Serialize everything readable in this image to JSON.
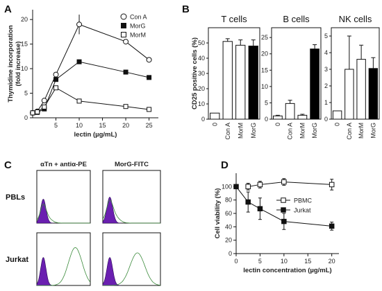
{
  "panels": {
    "a": "A",
    "b": "B",
    "c": "C",
    "d": "D"
  },
  "chart_data": [
    {
      "id": "A",
      "type": "line",
      "xlabel": "lectin (µg/mL)",
      "ylabel": "Thymidine incorporation\n(fold increase)",
      "xlim": [
        0,
        27
      ],
      "ylim": [
        0,
        22
      ],
      "xticks": [
        5,
        10,
        15,
        20,
        25
      ],
      "yticks": [
        0,
        5,
        10,
        15,
        20
      ],
      "legend_position": "top-right",
      "series": [
        {
          "name": "Con A",
          "marker": "circle-open",
          "x": [
            0,
            1,
            2.5,
            5,
            10,
            20,
            25
          ],
          "y": [
            1,
            1.3,
            3.5,
            8.8,
            19,
            15.5,
            11.8
          ],
          "error": [
            0,
            0,
            0,
            0,
            2,
            0,
            0
          ]
        },
        {
          "name": "MorG",
          "marker": "square-filled",
          "x": [
            0,
            1,
            2.5,
            5,
            10,
            20,
            25
          ],
          "y": [
            1,
            1.1,
            1.8,
            7.8,
            11.4,
            9.3,
            8.2
          ],
          "error": [
            0,
            0,
            0,
            0,
            0,
            0,
            0
          ]
        },
        {
          "name": "MorM",
          "marker": "square-open",
          "x": [
            0,
            1,
            2.5,
            5,
            10,
            20,
            25
          ],
          "y": [
            1,
            1.2,
            2.2,
            6.1,
            3.4,
            2.3,
            1.7
          ],
          "error": [
            0,
            0,
            0,
            0,
            0,
            0,
            0
          ]
        }
      ]
    },
    {
      "id": "B",
      "type": "bar",
      "ylabel": "CD25 positive cells (%)",
      "categories": [
        "0",
        "Con A",
        "MorM",
        "MorG"
      ],
      "bar_fills": [
        "#ffffff",
        "#ffffff",
        "#ffffff",
        "#000000"
      ],
      "subplots": [
        {
          "title": "T cells",
          "ylim": [
            0,
            60
          ],
          "yticks": [
            0,
            10,
            20,
            30,
            40,
            50
          ],
          "values": [
            4,
            51,
            48.5,
            48
          ],
          "errors": [
            0,
            1.8,
            3.5,
            4
          ]
        },
        {
          "title": "B cells",
          "ylim": [
            0,
            28
          ],
          "yticks": [
            0,
            5,
            10,
            15,
            20,
            25
          ],
          "values": [
            1,
            4.8,
            1.2,
            21.5
          ],
          "errors": [
            0.2,
            1,
            0.3,
            1.3
          ]
        },
        {
          "title": "NK cells",
          "ylim": [
            0,
            5.5
          ],
          "yticks": [
            0,
            1,
            2,
            3,
            4,
            5
          ],
          "values": [
            0.5,
            3,
            3.6,
            3.05
          ],
          "errors": [
            0,
            2,
            0.85,
            0.65
          ]
        }
      ]
    },
    {
      "id": "C",
      "type": "histogram-overlay",
      "column_titles": [
        "αTn + antiα-PE",
        "MorG-FITC"
      ],
      "row_labels": [
        "PBLs",
        "Jurkat"
      ],
      "filled_color": "#6a1fb0",
      "outline_color": "#3a8a3a",
      "cells": [
        {
          "row": "PBLs",
          "column": "αTn + antiα-PE",
          "filled_peak": 0.12,
          "outline_peak": 0.14
        },
        {
          "row": "PBLs",
          "column": "MorG-FITC",
          "filled_peak": 0.13,
          "outline_peak": 0.2
        },
        {
          "row": "Jurkat",
          "column": "αTn + antiα-PE",
          "filled_peak": 0.14,
          "outline_peak": 0.72
        },
        {
          "row": "Jurkat",
          "column": "MorG-FITC",
          "filled_peak": 0.14,
          "outline_peak": 0.62
        }
      ]
    },
    {
      "id": "D",
      "type": "line",
      "xlabel": "lectin concentration (µg/mL)",
      "ylabel": "Cell viability (%)",
      "xlim": [
        0,
        21.5
      ],
      "ylim": [
        0,
        120
      ],
      "xticks": [
        0,
        5,
        10,
        15,
        20
      ],
      "yticks": [
        0,
        20,
        40,
        60,
        80,
        100
      ],
      "legend_position": "right",
      "series": [
        {
          "name": "PBMC",
          "marker": "square-open",
          "x": [
            2.5,
            5,
            10,
            20
          ],
          "y": [
            100,
            103,
            107,
            103
          ],
          "error": [
            5,
            5,
            5,
            8
          ]
        },
        {
          "name": "Jurkat",
          "marker": "square-filled",
          "x": [
            0,
            2.5,
            5,
            10,
            20
          ],
          "y": [
            100,
            77,
            67,
            48,
            41
          ],
          "error": [
            0,
            15,
            16,
            12,
            6
          ]
        }
      ]
    }
  ]
}
